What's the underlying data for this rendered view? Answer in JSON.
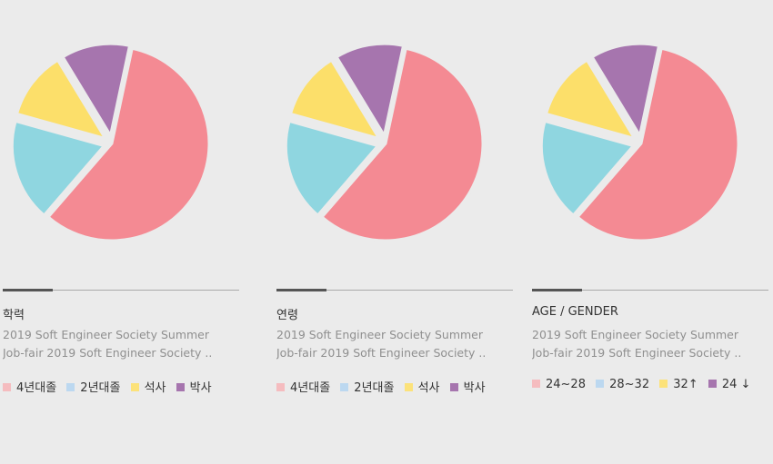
{
  "colors": [
    "#f48a93",
    "#8fd6e0",
    "#fcdf6a",
    "#a675ae"
  ],
  "legend_colors": [
    "#f5bcbf",
    "#bcd8f0",
    "#fce27a",
    "#a675ae"
  ],
  "charts": [
    {
      "title": "학력",
      "desc_line1": "2019 Soft Engineer Society Summer",
      "desc_line2": "Job-fair 2019 Soft Engineer Society ..",
      "legend": [
        "4년대졸",
        "2년대졸",
        "석사",
        "박사"
      ]
    },
    {
      "title": "연령",
      "desc_line1": "2019 Soft Engineer Society Summer",
      "desc_line2": "Job-fair 2019 Soft Engineer Society ..",
      "legend": [
        "4년대졸",
        "2년대졸",
        "석사",
        "박사"
      ]
    },
    {
      "title": "AGE / GENDER",
      "desc_line1": "2019 Soft Engineer Society Summer",
      "desc_line2": "Job-fair 2019 Soft Engineer Society ..",
      "legend": [
        "24~28",
        "28~32",
        "32↑",
        "24 ↓"
      ]
    }
  ],
  "chart_data": [
    {
      "type": "pie",
      "labels": [
        "4년대졸",
        "2년대졸",
        "석사",
        "박사"
      ],
      "values": [
        58,
        18,
        12,
        12
      ]
    },
    {
      "type": "pie",
      "labels": [
        "4년대졸",
        "2년대졸",
        "석사",
        "박사"
      ],
      "values": [
        58,
        18,
        12,
        12
      ]
    },
    {
      "type": "pie",
      "labels": [
        "24~28",
        "28~32",
        "32↑",
        "24 ↓"
      ],
      "values": [
        58,
        18,
        12,
        12
      ]
    }
  ]
}
